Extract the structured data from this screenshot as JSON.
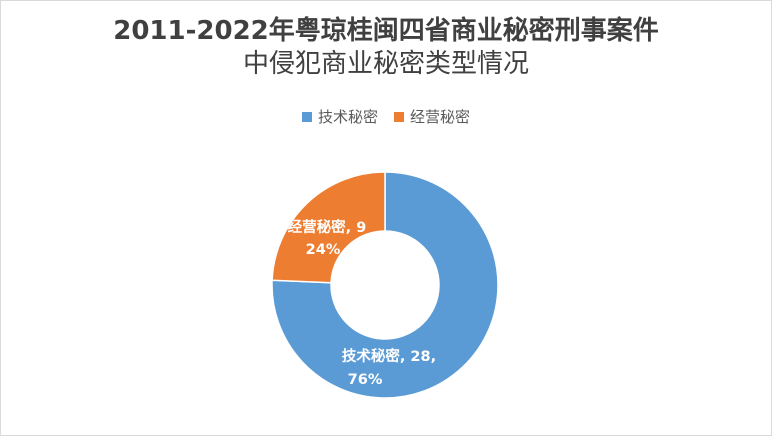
{
  "chart_data": {
    "type": "pie",
    "variant": "donut",
    "title_line1": "2011-2022年粤琼桂闽四省商业秘密刑事案件",
    "title_line2": "中侵犯商业秘密类型情况",
    "legend_placement": "top",
    "categories": [
      "技术秘密",
      "经营秘密"
    ],
    "values": [
      28,
      9
    ],
    "percents": [
      "76%",
      "24%"
    ],
    "colors": [
      "#5b9bd5",
      "#ed7d31"
    ],
    "data_labels": [
      {
        "line1": "技术秘密, 28,",
        "line2": "76%"
      },
      {
        "line1": "经营秘密, 9",
        "line2": "24%"
      }
    ]
  }
}
